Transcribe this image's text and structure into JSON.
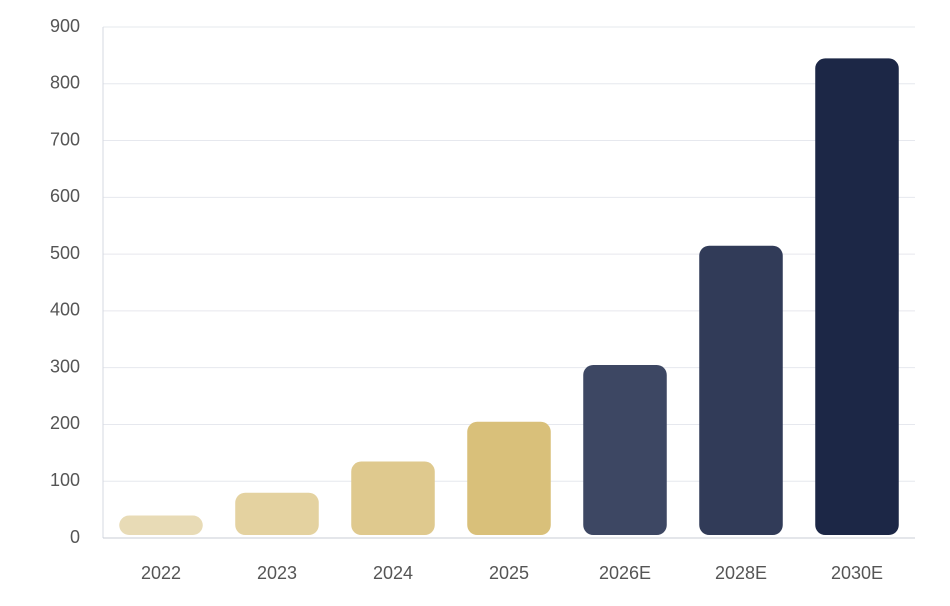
{
  "chart_data": {
    "type": "bar",
    "categories": [
      "2022",
      "2023",
      "2024",
      "2025",
      "2026E",
      "2028E",
      "2030E"
    ],
    "values": [
      45,
      85,
      140,
      210,
      310,
      520,
      850
    ],
    "colors": [
      "#e8dbb6",
      "#e4d2a0",
      "#dfc98e",
      "#d9c07a",
      "#3d4763",
      "#313b58",
      "#1c2746"
    ],
    "ylim": [
      0,
      900
    ],
    "yticks": [
      0,
      100,
      200,
      300,
      400,
      500,
      600,
      700,
      800,
      900
    ],
    "grid": true
  }
}
